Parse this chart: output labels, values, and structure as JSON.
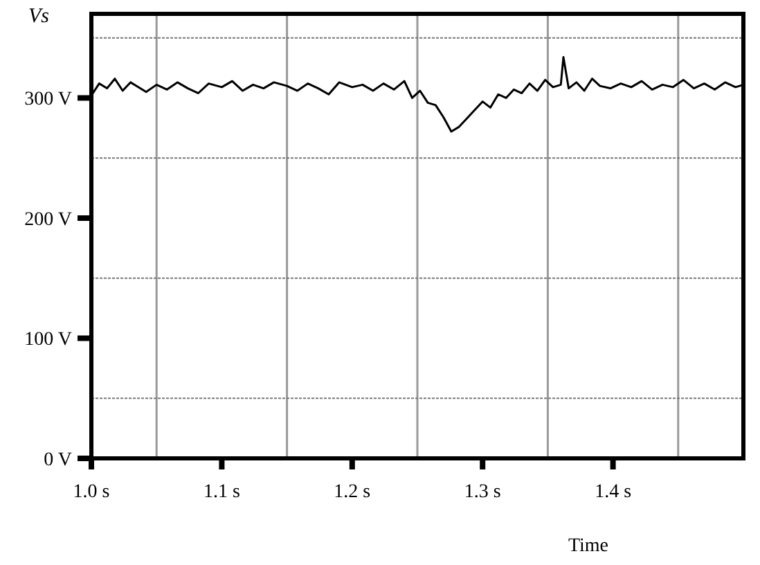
{
  "chart_data": {
    "type": "line",
    "xlabel": "Time",
    "ylabel": "Vs",
    "color": "#000000",
    "x": [
      1.0,
      1.006,
      1.012,
      1.018,
      1.024,
      1.03,
      1.036,
      1.042,
      1.05,
      1.058,
      1.066,
      1.074,
      1.082,
      1.09,
      1.1,
      1.108,
      1.116,
      1.124,
      1.132,
      1.14,
      1.15,
      1.158,
      1.166,
      1.174,
      1.182,
      1.19,
      1.2,
      1.208,
      1.216,
      1.224,
      1.232,
      1.24,
      1.246,
      1.252,
      1.258,
      1.264,
      1.27,
      1.276,
      1.282,
      1.288,
      1.294,
      1.3,
      1.306,
      1.312,
      1.318,
      1.324,
      1.33,
      1.336,
      1.342,
      1.348,
      1.354,
      1.36,
      1.362,
      1.366,
      1.372,
      1.378,
      1.384,
      1.39,
      1.398,
      1.406,
      1.414,
      1.422,
      1.43,
      1.438,
      1.446,
      1.454,
      1.462,
      1.47,
      1.478,
      1.486,
      1.494,
      1.5
    ],
    "values": [
      302,
      312,
      308,
      316,
      306,
      313,
      309,
      305,
      311,
      307,
      313,
      308,
      304,
      312,
      309,
      314,
      306,
      311,
      308,
      313,
      310,
      306,
      312,
      308,
      303,
      313,
      309,
      311,
      306,
      312,
      307,
      314,
      300,
      306,
      296,
      294,
      284,
      272,
      276,
      283,
      290,
      297,
      292,
      303,
      300,
      307,
      304,
      312,
      306,
      315,
      309,
      311,
      334,
      308,
      313,
      306,
      316,
      310,
      308,
      312,
      309,
      314,
      307,
      311,
      309,
      315,
      308,
      312,
      307,
      313,
      309,
      311
    ],
    "xlim": [
      1.0,
      1.5
    ],
    "ylim": [
      0,
      370
    ],
    "xticks": [
      {
        "value": 1.0,
        "label": "1.0 s"
      },
      {
        "value": 1.05,
        "label": null
      },
      {
        "value": 1.1,
        "label": "1.1 s"
      },
      {
        "value": 1.15,
        "label": null
      },
      {
        "value": 1.2,
        "label": "1.2 s"
      },
      {
        "value": 1.25,
        "label": null
      },
      {
        "value": 1.3,
        "label": "1.3 s"
      },
      {
        "value": 1.35,
        "label": null
      },
      {
        "value": 1.4,
        "label": "1.4 s"
      },
      {
        "value": 1.45,
        "label": null
      }
    ],
    "yticks": [
      {
        "value": 0,
        "label": "0 V"
      },
      {
        "value": 50,
        "label": null
      },
      {
        "value": 100,
        "label": "100 V"
      },
      {
        "value": 150,
        "label": null
      },
      {
        "value": 200,
        "label": "200 V"
      },
      {
        "value": 250,
        "label": null
      },
      {
        "value": 300,
        "label": "300 V"
      },
      {
        "value": 350,
        "label": null
      }
    ],
    "grid": true
  }
}
